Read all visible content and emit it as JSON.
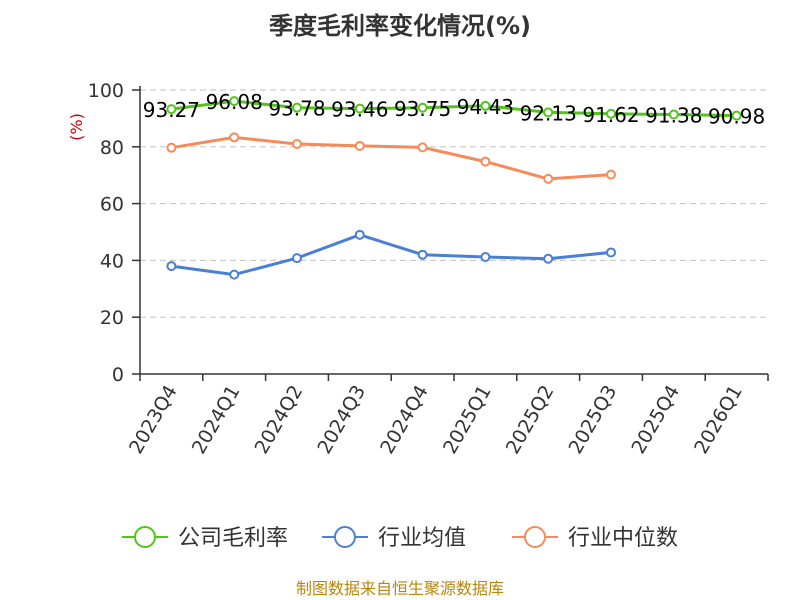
{
  "chart_data": {
    "type": "line",
    "title": "季度毛利率变化情况(%)",
    "ylabel": "(%)",
    "ylim": [
      0,
      100
    ],
    "yticks": [
      0,
      20,
      40,
      60,
      80,
      100
    ],
    "grid": "horizontal dashed",
    "legend_position": "bottom",
    "categories": [
      "2023Q4",
      "2024Q1",
      "2024Q2",
      "2024Q3",
      "2024Q4",
      "2025Q1",
      "2025Q2",
      "2025Q3",
      "2025Q4",
      "2026Q1"
    ],
    "series": [
      {
        "name": "公司毛利率",
        "color": "#52c41a",
        "values": [
          93.27,
          96.08,
          93.78,
          93.46,
          93.75,
          94.43,
          92.13,
          91.62,
          91.38,
          90.98
        ],
        "labels": [
          "93.27",
          "96.08",
          "93.78",
          "93.46",
          "93.75",
          "94.43",
          "92.13",
          "91.62",
          "91.38",
          "90.98"
        ]
      },
      {
        "name": "行业均值",
        "color": "#4a7fd4",
        "values": [
          38.0,
          35.0,
          40.8,
          49.0,
          42.0,
          41.2,
          40.6,
          42.8,
          null,
          null
        ]
      },
      {
        "name": "行业中位数",
        "color": "#f58b5a",
        "values": [
          79.7,
          83.3,
          81.0,
          80.3,
          79.8,
          74.8,
          68.7,
          70.2,
          null,
          null
        ]
      }
    ]
  },
  "footer": {
    "source": "制图数据来自恒生聚源数据库"
  }
}
